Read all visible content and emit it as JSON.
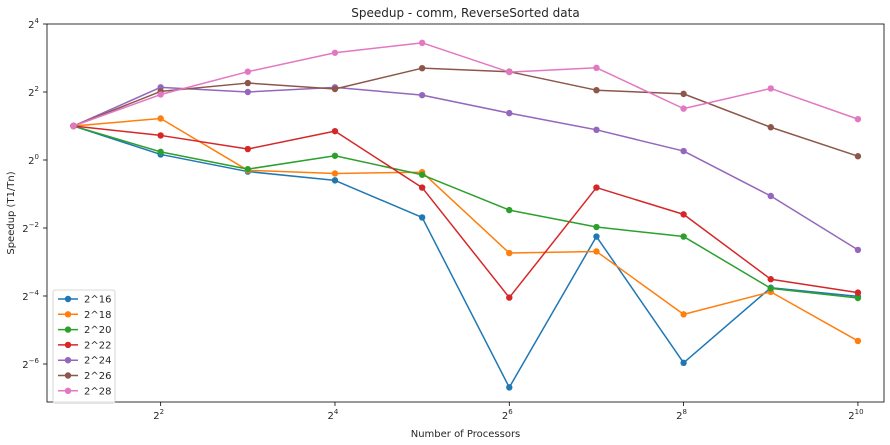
{
  "chart_data": {
    "type": "line",
    "title": "Speedup - comm, ReverseSorted data",
    "xlabel": "Number of Processors",
    "ylabel": "Speedup (T1/Tn)",
    "x_scale": "log2",
    "y_scale": "log2",
    "x": [
      2,
      4,
      8,
      16,
      32,
      64,
      128,
      256,
      512,
      1024
    ],
    "xlim": [
      1.62,
      1260
    ],
    "ylim": [
      0.0072,
      16
    ],
    "x_ticks": [
      {
        "value": 4,
        "base": "2",
        "exp": "2"
      },
      {
        "value": 16,
        "base": "2",
        "exp": "4"
      },
      {
        "value": 64,
        "base": "2",
        "exp": "6"
      },
      {
        "value": 256,
        "base": "2",
        "exp": "8"
      },
      {
        "value": 1024,
        "base": "2",
        "exp": "10"
      }
    ],
    "y_ticks": [
      {
        "value": 0.015625,
        "base": "2",
        "exp": "−6"
      },
      {
        "value": 0.0625,
        "base": "2",
        "exp": "−4"
      },
      {
        "value": 0.25,
        "base": "2",
        "exp": "−2"
      },
      {
        "value": 1,
        "base": "2",
        "exp": "0"
      },
      {
        "value": 4,
        "base": "2",
        "exp": "2"
      },
      {
        "value": 16,
        "base": "2",
        "exp": "4"
      }
    ],
    "legend_position": "lower-left",
    "grid": false,
    "series": [
      {
        "name": "2^16",
        "color": "#1f77b4",
        "values": [
          2.0,
          1.12,
          0.79,
          0.66,
          0.31,
          0.0097,
          0.21,
          0.016,
          0.074,
          0.062
        ]
      },
      {
        "name": "2^18",
        "color": "#ff7f0e",
        "values": [
          2.0,
          2.33,
          0.81,
          0.76,
          0.78,
          0.15,
          0.155,
          0.043,
          0.068,
          0.025
        ]
      },
      {
        "name": "2^20",
        "color": "#2ca02c",
        "values": [
          2.0,
          1.18,
          0.83,
          1.09,
          0.74,
          0.36,
          0.255,
          0.21,
          0.073,
          0.06
        ]
      },
      {
        "name": "2^22",
        "color": "#d62728",
        "values": [
          2.0,
          1.65,
          1.25,
          1.8,
          0.57,
          0.0605,
          0.57,
          0.33,
          0.088,
          0.067
        ]
      },
      {
        "name": "2^24",
        "color": "#9467bd",
        "values": [
          2.0,
          4.4,
          4.0,
          4.4,
          3.75,
          2.6,
          1.85,
          1.2,
          0.48,
          0.16
        ]
      },
      {
        "name": "2^26",
        "color": "#8c564b",
        "values": [
          2.0,
          4.05,
          4.8,
          4.25,
          6.5,
          6.05,
          4.15,
          3.85,
          1.95,
          1.08
        ]
      },
      {
        "name": "2^28",
        "color": "#e377c2",
        "values": [
          2.0,
          3.8,
          6.05,
          8.9,
          10.9,
          6.0,
          6.55,
          2.85,
          4.3,
          2.3
        ]
      }
    ]
  }
}
